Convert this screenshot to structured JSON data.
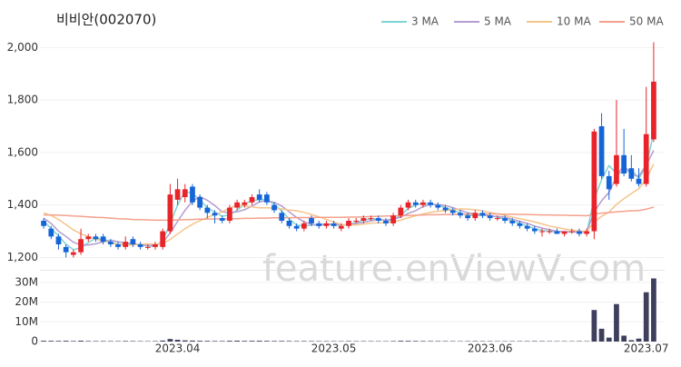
{
  "chart_data": {
    "type": "candlestick",
    "title": "비비안(002070)",
    "watermark": "feature.enViewV.com",
    "up_color": "#e8242a",
    "down_color": "#1565d8",
    "grid": true,
    "ylim": [
      1160,
      2060
    ],
    "yticks": [
      {
        "value": 1200,
        "label": "1,200"
      },
      {
        "value": 1400,
        "label": "1,400"
      },
      {
        "value": 1600,
        "label": "1,600"
      },
      {
        "value": 1800,
        "label": "1,800"
      },
      {
        "value": 2000,
        "label": "2,000"
      }
    ],
    "categories": [
      null,
      null,
      null,
      null,
      null,
      null,
      null,
      null,
      null,
      null,
      null,
      null,
      null,
      null,
      null,
      null,
      null,
      null,
      "2023.04",
      null,
      null,
      null,
      null,
      null,
      null,
      null,
      null,
      null,
      null,
      null,
      null,
      null,
      null,
      null,
      null,
      null,
      null,
      null,
      null,
      "2023.05",
      null,
      null,
      null,
      null,
      null,
      null,
      null,
      null,
      null,
      null,
      null,
      null,
      null,
      null,
      null,
      null,
      null,
      null,
      null,
      null,
      "2023.06",
      null,
      null,
      null,
      null,
      null,
      null,
      null,
      null,
      null,
      null,
      null,
      null,
      null,
      null,
      null,
      null,
      null,
      null,
      null,
      null,
      "2023.07",
      null
    ],
    "open": [
      1340,
      1310,
      1280,
      1240,
      1210,
      1220,
      1270,
      1280,
      1280,
      1260,
      1250,
      1240,
      1270,
      1250,
      1240,
      1240,
      1240,
      1300,
      1420,
      1430,
      1470,
      1430,
      1390,
      1370,
      1350,
      1340,
      1390,
      1400,
      1410,
      1440,
      1440,
      1400,
      1370,
      1340,
      1320,
      1310,
      1350,
      1330,
      1320,
      1330,
      1310,
      1320,
      1340,
      1340,
      1350,
      1350,
      1340,
      1330,
      1360,
      1390,
      1410,
      1400,
      1410,
      1400,
      1390,
      1380,
      1370,
      1360,
      1350,
      1370,
      1360,
      1350,
      1350,
      1340,
      1330,
      1320,
      1310,
      1300,
      1300,
      1300,
      1290,
      1300,
      1300,
      1290,
      1300,
      1700,
      1510,
      1480,
      1590,
      1540,
      1500,
      1480,
      1650
    ],
    "high": [
      1350,
      1320,
      1290,
      1250,
      1230,
      1310,
      1290,
      1290,
      1290,
      1270,
      1260,
      1280,
      1280,
      1260,
      1250,
      1260,
      1310,
      1480,
      1500,
      1480,
      1480,
      1440,
      1400,
      1380,
      1360,
      1400,
      1420,
      1420,
      1440,
      1460,
      1450,
      1410,
      1380,
      1350,
      1330,
      1340,
      1360,
      1340,
      1340,
      1340,
      1330,
      1350,
      1350,
      1360,
      1360,
      1360,
      1350,
      1370,
      1400,
      1420,
      1420,
      1420,
      1420,
      1410,
      1400,
      1390,
      1380,
      1370,
      1380,
      1380,
      1370,
      1360,
      1360,
      1350,
      1340,
      1330,
      1320,
      1310,
      1310,
      1310,
      1300,
      1310,
      1310,
      1310,
      1690,
      1750,
      1530,
      1800,
      1690,
      1590,
      1540,
      1850,
      2020
    ],
    "low": [
      1310,
      1270,
      1230,
      1200,
      1200,
      1210,
      1260,
      1260,
      1250,
      1240,
      1230,
      1230,
      1240,
      1230,
      1230,
      1230,
      1230,
      1290,
      1400,
      1410,
      1400,
      1380,
      1350,
      1330,
      1330,
      1330,
      1380,
      1390,
      1400,
      1410,
      1400,
      1370,
      1330,
      1310,
      1300,
      1300,
      1320,
      1310,
      1310,
      1310,
      1300,
      1310,
      1330,
      1330,
      1340,
      1330,
      1320,
      1320,
      1350,
      1380,
      1390,
      1390,
      1390,
      1380,
      1370,
      1360,
      1350,
      1340,
      1340,
      1350,
      1340,
      1340,
      1330,
      1320,
      1310,
      1300,
      1290,
      1280,
      1290,
      1290,
      1280,
      1290,
      1280,
      1280,
      1270,
      1500,
      1420,
      1470,
      1510,
      1490,
      1470,
      1470,
      1640
    ],
    "close": [
      1320,
      1280,
      1250,
      1220,
      1220,
      1270,
      1280,
      1270,
      1260,
      1250,
      1240,
      1260,
      1250,
      1240,
      1240,
      1250,
      1300,
      1440,
      1460,
      1460,
      1410,
      1390,
      1370,
      1360,
      1340,
      1390,
      1410,
      1410,
      1430,
      1420,
      1410,
      1380,
      1340,
      1320,
      1310,
      1330,
      1330,
      1320,
      1330,
      1320,
      1320,
      1340,
      1340,
      1350,
      1350,
      1340,
      1330,
      1360,
      1390,
      1410,
      1400,
      1410,
      1400,
      1390,
      1380,
      1370,
      1360,
      1350,
      1370,
      1360,
      1350,
      1350,
      1340,
      1330,
      1320,
      1310,
      1300,
      1300,
      1300,
      1290,
      1300,
      1300,
      1290,
      1300,
      1680,
      1510,
      1460,
      1590,
      1520,
      1500,
      1480,
      1670,
      1870
    ],
    "moving_averages": [
      {
        "name": "3 MA",
        "color": "#7fd3d3",
        "values": [
          1340,
          1310,
          1283,
          1250,
          1230,
          1237,
          1257,
          1273,
          1270,
          1260,
          1250,
          1250,
          1250,
          1250,
          1243,
          1243,
          1263,
          1330,
          1400,
          1453,
          1443,
          1420,
          1390,
          1373,
          1357,
          1363,
          1380,
          1403,
          1417,
          1420,
          1420,
          1403,
          1377,
          1347,
          1323,
          1320,
          1323,
          1327,
          1327,
          1323,
          1323,
          1327,
          1333,
          1343,
          1347,
          1347,
          1340,
          1343,
          1360,
          1387,
          1400,
          1407,
          1403,
          1400,
          1390,
          1380,
          1370,
          1360,
          1360,
          1360,
          1360,
          1353,
          1347,
          1340,
          1330,
          1320,
          1310,
          1303,
          1300,
          1297,
          1297,
          1297,
          1297,
          1297,
          1423,
          1497,
          1550,
          1520,
          1523,
          1537,
          1500,
          1550,
          1673
        ]
      },
      {
        "name": "5 MA",
        "color": "#b39ccf",
        "values": [
          1350,
          1330,
          1300,
          1280,
          1258,
          1248,
          1248,
          1252,
          1260,
          1266,
          1260,
          1256,
          1252,
          1248,
          1246,
          1246,
          1256,
          1294,
          1338,
          1380,
          1414,
          1432,
          1418,
          1398,
          1374,
          1370,
          1374,
          1382,
          1396,
          1412,
          1416,
          1410,
          1396,
          1374,
          1352,
          1336,
          1326,
          1322,
          1328,
          1326,
          1324,
          1326,
          1330,
          1334,
          1340,
          1344,
          1342,
          1346,
          1354,
          1368,
          1378,
          1394,
          1402,
          1402,
          1398,
          1390,
          1380,
          1370,
          1366,
          1362,
          1358,
          1356,
          1354,
          1346,
          1338,
          1330,
          1320,
          1312,
          1306,
          1300,
          1298,
          1298,
          1296,
          1298,
          1374,
          1416,
          1448,
          1508,
          1552,
          1516,
          1510,
          1552,
          1608
        ]
      },
      {
        "name": "10 MA",
        "color": "#f5c48a",
        "values": [
          1370,
          1360,
          1345,
          1325,
          1305,
          1290,
          1280,
          1270,
          1262,
          1257,
          1249,
          1247,
          1248,
          1250,
          1252,
          1250,
          1252,
          1269,
          1289,
          1310,
          1327,
          1340,
          1352,
          1364,
          1374,
          1388,
          1399,
          1396,
          1393,
          1389,
          1389,
          1388,
          1385,
          1381,
          1378,
          1372,
          1364,
          1355,
          1345,
          1335,
          1326,
          1324,
          1324,
          1327,
          1331,
          1332,
          1332,
          1336,
          1342,
          1351,
          1359,
          1366,
          1372,
          1376,
          1379,
          1382,
          1385,
          1384,
          1382,
          1377,
          1372,
          1366,
          1360,
          1354,
          1348,
          1342,
          1335,
          1328,
          1320,
          1314,
          1309,
          1304,
          1301,
          1299,
          1336,
          1357,
          1373,
          1402,
          1424,
          1444,
          1462,
          1499,
          1556
        ]
      },
      {
        "name": "50 MA",
        "color": "#f4a08c",
        "values": [
          1362,
          1362,
          1361,
          1360,
          1358,
          1357,
          1355,
          1353,
          1352,
          1350,
          1348,
          1347,
          1345,
          1344,
          1343,
          1342,
          1342,
          1342,
          1343,
          1344,
          1345,
          1346,
          1346,
          1347,
          1347,
          1348,
          1348,
          1349,
          1349,
          1350,
          1350,
          1351,
          1351,
          1351,
          1352,
          1352,
          1352,
          1353,
          1353,
          1353,
          1353,
          1354,
          1354,
          1355,
          1356,
          1357,
          1358,
          1358,
          1359,
          1360,
          1361,
          1362,
          1363,
          1363,
          1364,
          1364,
          1365,
          1365,
          1366,
          1366,
          1366,
          1366,
          1365,
          1365,
          1364,
          1364,
          1363,
          1362,
          1362,
          1361,
          1361,
          1360,
          1360,
          1359,
          1366,
          1369,
          1371,
          1374,
          1376,
          1378,
          1379,
          1384,
          1392
        ]
      }
    ],
    "volume": {
      "color": "#3d3f5c",
      "ylim": [
        0,
        35000000
      ],
      "yticks": [
        0,
        {
          "value": 10000000,
          "label": "10M"
        },
        {
          "value": 20000000,
          "label": "20M"
        },
        {
          "value": 30000000,
          "label": "30M"
        }
      ],
      "values": [
        420000,
        380000,
        350000,
        400000,
        300000,
        450000,
        280000,
        250000,
        260000,
        240000,
        230000,
        300000,
        250000,
        220000,
        200000,
        240000,
        500000,
        1300000,
        900000,
        600000,
        500000,
        400000,
        350000,
        300000,
        280000,
        400000,
        450000,
        350000,
        380000,
        420000,
        350000,
        300000,
        320000,
        280000,
        250000,
        260000,
        240000,
        220000,
        230000,
        210000,
        200000,
        250000,
        220000,
        230000,
        210000,
        200000,
        190000,
        260000,
        380000,
        350000,
        300000,
        280000,
        260000,
        240000,
        230000,
        220000,
        200000,
        210000,
        250000,
        220000,
        200000,
        190000,
        180000,
        200000,
        210000,
        220000,
        250000,
        230000,
        200000,
        190000,
        200000,
        180000,
        210000,
        190000,
        16000000,
        6500000,
        2000000,
        19000000,
        3000000,
        700000,
        1500000,
        25000000,
        32000000
      ]
    }
  }
}
